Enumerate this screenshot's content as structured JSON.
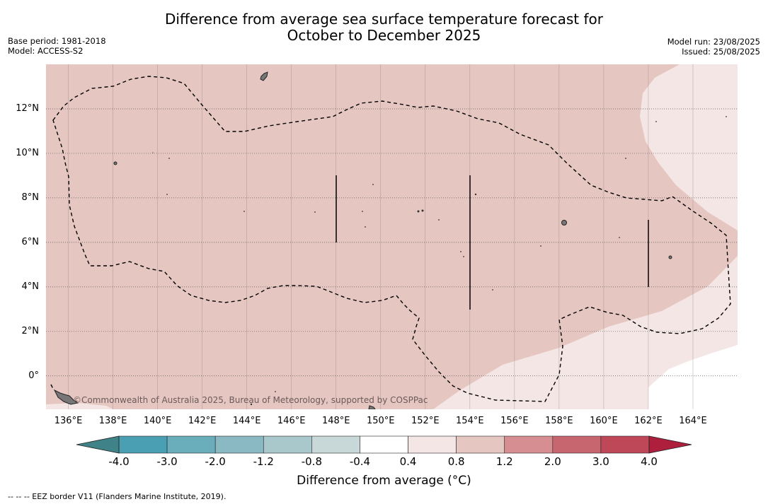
{
  "title_line1": "Difference from average sea surface temperature forecast for",
  "title_line2": "October to December 2025",
  "base_period": "Base period: 1981-2018",
  "model": "Model: ACCESS-S2",
  "model_run": "Model run: 23/08/2025",
  "issued": "Issued: 25/08/2025",
  "copyright": "©Commonwealth of Australia 2025, Bureau of Meteorology, supported by COSPPac",
  "map": {
    "lon_range": [
      135,
      166
    ],
    "lat_range": [
      -1.5,
      14
    ],
    "lat_labels": [
      "12°N",
      "10°N",
      "8°N",
      "6°N",
      "4°N",
      "2°N",
      "0°"
    ],
    "lat_values": [
      12,
      10,
      8,
      6,
      4,
      2,
      0
    ],
    "lon_labels": [
      "136°E",
      "138°E",
      "140°E",
      "142°E",
      "144°E",
      "146°E",
      "148°E",
      "150°E",
      "152°E",
      "154°E",
      "156°E",
      "158°E",
      "160°E",
      "162°E",
      "164°E"
    ],
    "lon_values": [
      136,
      138,
      140,
      142,
      144,
      146,
      148,
      150,
      152,
      154,
      156,
      158,
      160,
      162,
      164
    ],
    "dominant_anomaly_class": "0.8 to 1.2",
    "colors": {
      "warm_0_8_1_2": "#e6c6c1",
      "warm_0_4_0_8": "#f4e6e4",
      "neutral": "#ffffff",
      "grid": "#8a7e7e"
    }
  },
  "colorbar": {
    "ticks": [
      "-4.0",
      "-3.0",
      "-2.0",
      "-1.2",
      "-0.8",
      "-0.4",
      "0.4",
      "0.8",
      "1.2",
      "2.0",
      "3.0",
      "4.0"
    ],
    "colors": [
      "#4aa0b2",
      "#6aaebc",
      "#8ab8c3",
      "#a9c8cc",
      "#c8d7d8",
      "#ffffff",
      "#f4e6e4",
      "#e6c6c1",
      "#d68e93",
      "#c86670",
      "#be4858"
    ],
    "under_color": "#3f8287",
    "over_color": "#ad1f3c",
    "label": "Difference from average (°C)"
  },
  "footnote": "-- -- -- EEZ border V11 (Flanders Marine Institute, 2019)."
}
